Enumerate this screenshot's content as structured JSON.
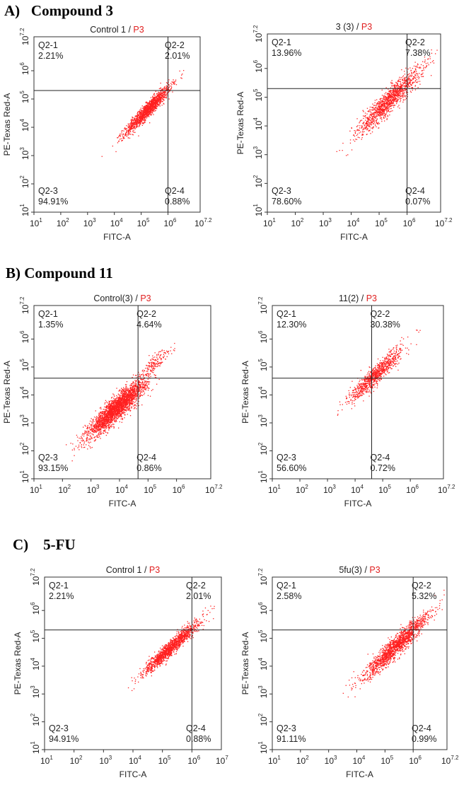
{
  "sections": [
    {
      "heading": "A)   Compound 3",
      "panels": [
        {
          "title": "Control 1",
          "gate": "P3",
          "xmaxlabel": "7.2",
          "ymaxlabel": "7.2",
          "q1": {
            "name": "Q2-1",
            "pct": "2.21%"
          },
          "q2": {
            "name": "Q2-2",
            "pct": "2.01%"
          },
          "q3": {
            "name": "Q2-3",
            "pct": "94.91%"
          },
          "q4": {
            "name": "Q2-4",
            "pct": "0.88%"
          },
          "xlabel": "FITC-A",
          "ylabel": "PE-Texas Red-A"
        },
        {
          "title": "3 (3)",
          "gate": "P3",
          "xmaxlabel": "7.2",
          "ymaxlabel": "7.2",
          "q1": {
            "name": "Q2-1",
            "pct": "13.96%"
          },
          "q2": {
            "name": "Q2-2",
            "pct": "7.38%"
          },
          "q3": {
            "name": "Q2-3",
            "pct": "78.60%"
          },
          "q4": {
            "name": "Q2-4",
            "pct": "0.07%"
          },
          "xlabel": "FITC-A",
          "ylabel": "PE-Texas Red-A"
        }
      ]
    },
    {
      "heading": "B) Compound 11",
      "panels": [
        {
          "title": "Control(3)",
          "gate": "P3",
          "xmaxlabel": "7.2",
          "ymaxlabel": "7.2",
          "q1": {
            "name": "Q2-1",
            "pct": "1.35%"
          },
          "q2": {
            "name": "Q2-2",
            "pct": "4.64%"
          },
          "q3": {
            "name": "Q2-3",
            "pct": "93.15%"
          },
          "q4": {
            "name": "Q2-4",
            "pct": "0.86%"
          },
          "xlabel": "FITC-A",
          "ylabel": "PE-Texas Red-A"
        },
        {
          "title": "11(2)",
          "gate": "P3",
          "xmaxlabel": "7.2",
          "ymaxlabel": "7.2",
          "q1": {
            "name": "Q2-1",
            "pct": "12.30%"
          },
          "q2": {
            "name": "Q2-2",
            "pct": "30.38%"
          },
          "q3": {
            "name": "Q2-3",
            "pct": "56.60%"
          },
          "q4": {
            "name": "Q2-4",
            "pct": "0.72%"
          },
          "xlabel": "FITC-A",
          "ylabel": "PE-Texas Red-A"
        }
      ]
    },
    {
      "heading": "C)    5-FU",
      "panels": [
        {
          "title": "Control 1",
          "gate": "P3",
          "xmaxlabel": "7",
          "ymaxlabel": "7.2",
          "q1": {
            "name": "Q2-1",
            "pct": "2.21%"
          },
          "q2": {
            "name": "Q2-2",
            "pct": "2.01%"
          },
          "q3": {
            "name": "Q2-3",
            "pct": "94.91%"
          },
          "q4": {
            "name": "Q2-4",
            "pct": "0.88%"
          },
          "xlabel": "FITC-A",
          "ylabel": "PE-Texas Red-A"
        },
        {
          "title": "5fu(3)",
          "gate": "P3",
          "xmaxlabel": "7.2",
          "ymaxlabel": "7.2",
          "q1": {
            "name": "Q2-1",
            "pct": "2.58%"
          },
          "q2": {
            "name": "Q2-2",
            "pct": "5.32%"
          },
          "q3": {
            "name": "Q2-3",
            "pct": "91.11%"
          },
          "q4": {
            "name": "Q2-4",
            "pct": "0.99%"
          },
          "xlabel": "FITC-A",
          "ylabel": "PE-Texas Red-A"
        }
      ]
    }
  ],
  "chart_data": [
    {
      "type": "scatter",
      "title": "Control 1 / P3",
      "xlabel": "FITC-A",
      "ylabel": "PE-Texas Red-A",
      "xlim": [
        1,
        7.2
      ],
      "ylim": [
        1,
        7.2
      ],
      "xscale": "log10",
      "yscale": "log10",
      "gate": {
        "x": 6.0,
        "y": 5.3
      },
      "quadrants": {
        "Q2-1": 2.21,
        "Q2-2": 2.01,
        "Q2-3": 94.91,
        "Q2-4": 0.88
      },
      "clusters": [
        {
          "cx": 5.25,
          "cy": 4.65,
          "len": 1.4,
          "width": 0.22,
          "count": 1400
        }
      ],
      "color": "#ff2020"
    },
    {
      "type": "scatter",
      "title": "3 (3) / P3",
      "xlabel": "FITC-A",
      "ylabel": "PE-Texas Red-A",
      "xlim": [
        1,
        7.2
      ],
      "ylim": [
        1,
        7.2
      ],
      "xscale": "log10",
      "yscale": "log10",
      "gate": {
        "x": 6.0,
        "y": 5.3
      },
      "quadrants": {
        "Q2-1": 13.96,
        "Q2-2": 7.38,
        "Q2-3": 78.6,
        "Q2-4": 0.07
      },
      "clusters": [
        {
          "cx": 5.35,
          "cy": 4.9,
          "len": 1.9,
          "width": 0.35,
          "count": 1300
        }
      ],
      "color": "#ff2020"
    },
    {
      "type": "scatter",
      "title": "Control(3) / P3",
      "xlabel": "FITC-A",
      "ylabel": "PE-Texas Red-A",
      "xlim": [
        1,
        7.2
      ],
      "ylim": [
        1,
        7.2
      ],
      "xscale": "log10",
      "yscale": "log10",
      "gate": {
        "x": 4.65,
        "y": 4.6
      },
      "quadrants": {
        "Q2-1": 1.35,
        "Q2-2": 4.64,
        "Q2-3": 93.15,
        "Q2-4": 0.86
      },
      "clusters": [
        {
          "cx": 3.9,
          "cy": 3.55,
          "len": 1.6,
          "width": 0.35,
          "count": 2600
        },
        {
          "cx": 5.2,
          "cy": 5.15,
          "len": 0.9,
          "width": 0.25,
          "count": 160
        }
      ],
      "color": "#ff2020"
    },
    {
      "type": "scatter",
      "title": "11(2) / P3",
      "xlabel": "FITC-A",
      "ylabel": "PE-Texas Red-A",
      "xlim": [
        1,
        7.2
      ],
      "ylim": [
        1,
        7.2
      ],
      "xscale": "log10",
      "yscale": "log10",
      "gate": {
        "x": 4.6,
        "y": 4.6
      },
      "quadrants": {
        "Q2-1": 12.3,
        "Q2-2": 30.38,
        "Q2-3": 56.6,
        "Q2-4": 0.72
      },
      "clusters": [
        {
          "cx": 4.75,
          "cy": 4.75,
          "len": 1.6,
          "width": 0.3,
          "count": 900
        }
      ],
      "color": "#ff2020"
    },
    {
      "type": "scatter",
      "title": "Control 1 / P3",
      "xlabel": "FITC-A",
      "ylabel": "PE-Texas Red-A",
      "xlim": [
        1,
        7
      ],
      "ylim": [
        1,
        7.2
      ],
      "xscale": "log10",
      "yscale": "log10",
      "gate": {
        "x": 6.0,
        "y": 5.3
      },
      "quadrants": {
        "Q2-1": 2.21,
        "Q2-2": 2.01,
        "Q2-3": 94.91,
        "Q2-4": 0.88
      },
      "clusters": [
        {
          "cx": 5.3,
          "cy": 4.7,
          "len": 1.5,
          "width": 0.22,
          "count": 1400
        }
      ],
      "color": "#ff2020"
    },
    {
      "type": "scatter",
      "title": "5fu(3) / P3",
      "xlabel": "FITC-A",
      "ylabel": "PE-Texas Red-A",
      "xlim": [
        1,
        7.2
      ],
      "ylim": [
        1,
        7.2
      ],
      "xscale": "log10",
      "yscale": "log10",
      "gate": {
        "x": 6.0,
        "y": 5.3
      },
      "quadrants": {
        "Q2-1": 2.58,
        "Q2-2": 5.32,
        "Q2-3": 91.11,
        "Q2-4": 0.99
      },
      "clusters": [
        {
          "cx": 5.4,
          "cy": 4.75,
          "len": 1.9,
          "width": 0.3,
          "count": 1600
        }
      ],
      "color": "#ff2020"
    }
  ]
}
